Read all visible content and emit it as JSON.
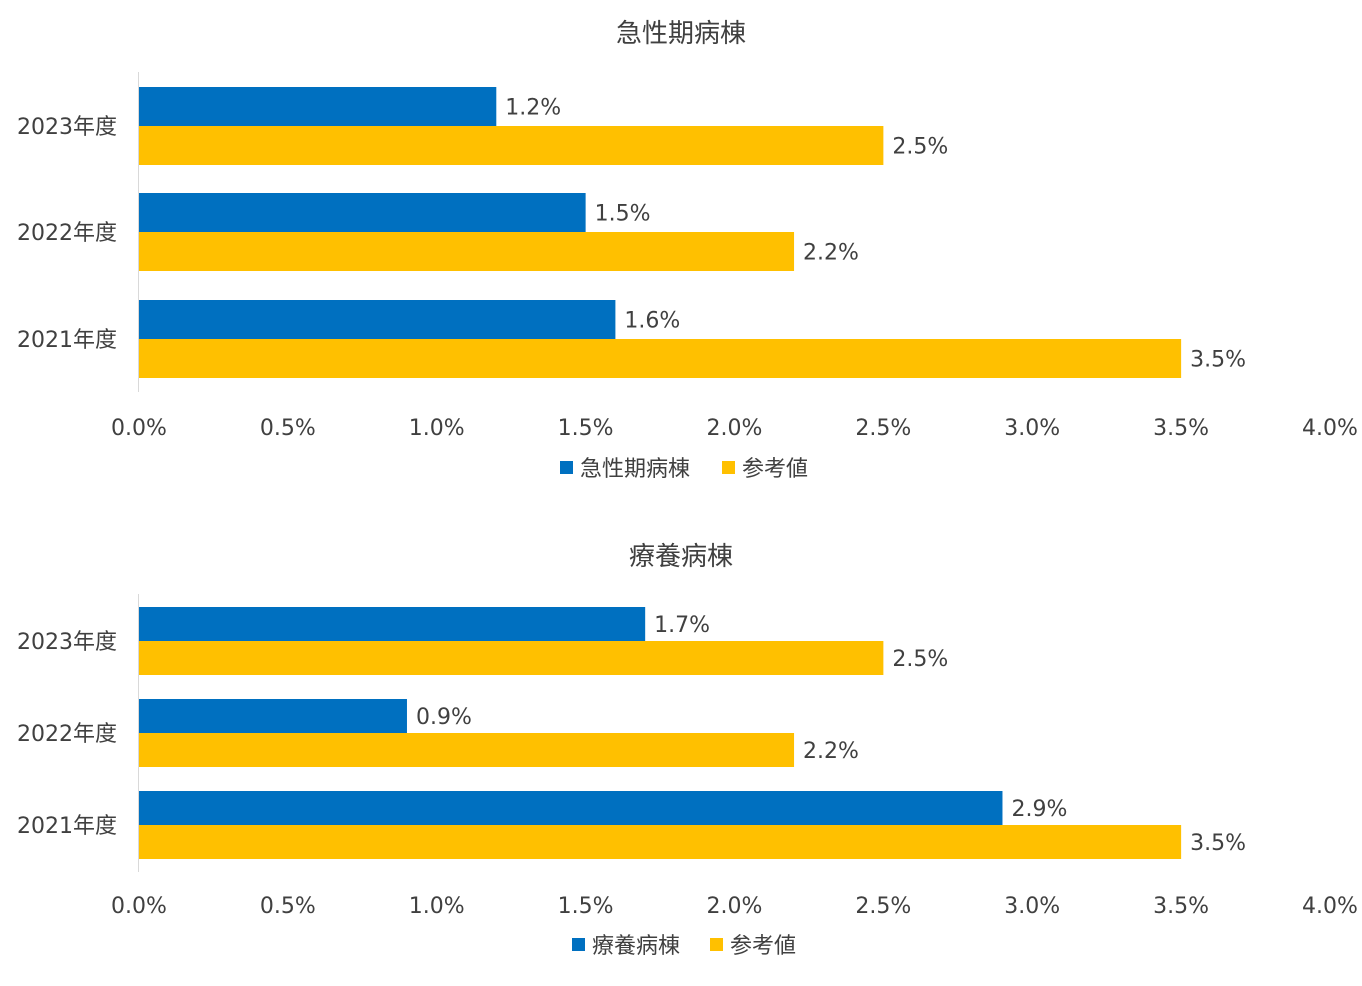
{
  "chart_data": [
    {
      "type": "bar",
      "orientation": "horizontal",
      "title": "急性期病棟",
      "categories": [
        "2023年度",
        "2022年度",
        "2021年度"
      ],
      "series": [
        {
          "name": "急性期病棟",
          "color": "#0070C0",
          "values": [
            1.2,
            1.5,
            1.6
          ],
          "labels": [
            "1.2%",
            "1.5%",
            "1.6%"
          ]
        },
        {
          "name": "参考値",
          "color": "#FFC000",
          "values": [
            2.5,
            2.2,
            3.5
          ],
          "labels": [
            "2.5%",
            "2.2%",
            "3.5%"
          ]
        }
      ],
      "xlim": [
        0,
        4
      ],
      "xticks": [
        "0.0%",
        "0.5%",
        "1.0%",
        "1.5%",
        "2.0%",
        "2.5%",
        "3.0%",
        "3.5%",
        "4.0%"
      ],
      "grid": false,
      "legend_position": "bottom"
    },
    {
      "type": "bar",
      "orientation": "horizontal",
      "title": "療養病棟",
      "categories": [
        "2023年度",
        "2022年度",
        "2021年度"
      ],
      "series": [
        {
          "name": "療養病棟",
          "color": "#0070C0",
          "values": [
            1.7,
            0.9,
            2.9
          ],
          "labels": [
            "1.7%",
            "0.9%",
            "2.9%"
          ]
        },
        {
          "name": "参考値",
          "color": "#FFC000",
          "values": [
            2.5,
            2.2,
            3.5
          ],
          "labels": [
            "2.5%",
            "2.2%",
            "3.5%"
          ]
        }
      ],
      "xlim": [
        0,
        4
      ],
      "xticks": [
        "0.0%",
        "0.5%",
        "1.0%",
        "1.5%",
        "2.0%",
        "2.5%",
        "3.0%",
        "3.5%",
        "4.0%"
      ],
      "grid": false,
      "legend_position": "bottom"
    }
  ]
}
